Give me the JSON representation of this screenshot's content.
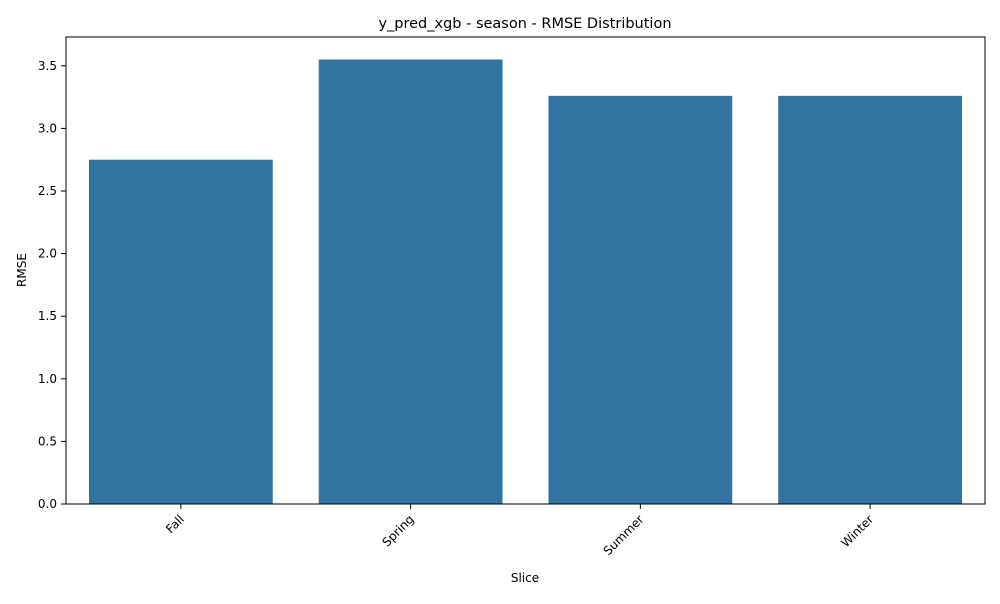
{
  "chart_data": {
    "type": "bar",
    "title": "y_pred_xgb - season - RMSE Distribution",
    "xlabel": "Slice",
    "ylabel": "RMSE",
    "categories": [
      "Fall",
      "Spring",
      "Summer",
      "Winter"
    ],
    "values": [
      2.75,
      3.55,
      3.26,
      3.26
    ],
    "ylim": [
      0,
      3.73
    ],
    "yticks": [
      "0.0",
      "0.5",
      "1.0",
      "1.5",
      "2.0",
      "2.5",
      "3.0",
      "3.5"
    ],
    "ytick_values": [
      0,
      0.5,
      1.0,
      1.5,
      2.0,
      2.5,
      3.0,
      3.5
    ],
    "xtick_rotation": "45 degrees",
    "grid": false,
    "legend": "none",
    "bar_color": "#3274a1"
  }
}
